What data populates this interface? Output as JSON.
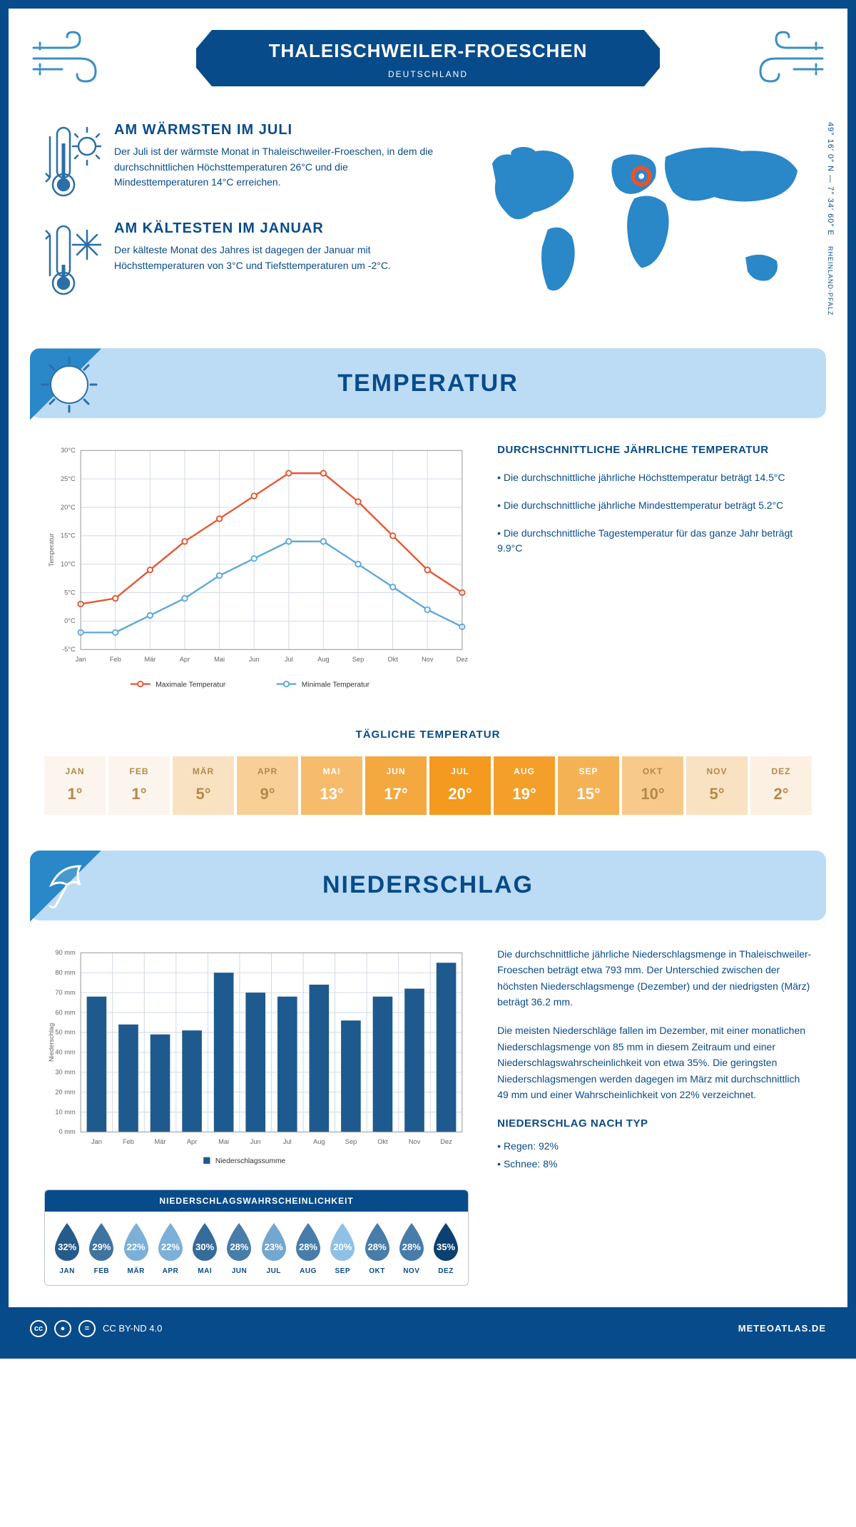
{
  "header": {
    "title": "THALEISCHWEILER-FROESCHEN",
    "country": "DEUTSCHLAND"
  },
  "intro": {
    "warm": {
      "heading": "AM WÄRMSTEN IM JULI",
      "text": "Der Juli ist der wärmste Monat in Thaleischweiler-Froeschen, in dem die durchschnittlichen Höchsttemperaturen 26°C und die Mindesttemperaturen 14°C erreichen."
    },
    "cold": {
      "heading": "AM KÄLTESTEN IM JANUAR",
      "text": "Der kälteste Monat des Jahres ist dagegen der Januar mit Höchsttemperaturen von 3°C und Tiefsttemperaturen um -2°C."
    },
    "coords": "49° 16′ 0″ N — 7° 34′ 60″ E",
    "region": "RHEINLAND-PFALZ"
  },
  "colors": {
    "primary": "#084b8a",
    "header_band": "#bcdcf5",
    "header_corner": "#2a87c8",
    "max_line": "#e8532e",
    "min_line": "#5aa8db",
    "bar_fill": "#1e5a8e",
    "grid": "#cfd8e3",
    "marker_red": "#e8532e"
  },
  "temperature": {
    "section_title": "TEMPERATUR",
    "months": [
      "Jan",
      "Feb",
      "Mär",
      "Apr",
      "Mai",
      "Jun",
      "Jul",
      "Aug",
      "Sep",
      "Okt",
      "Nov",
      "Dez"
    ],
    "max": [
      3,
      4,
      9,
      14,
      18,
      22,
      26,
      26,
      21,
      15,
      9,
      5
    ],
    "min": [
      -2,
      -2,
      1,
      4,
      8,
      11,
      14,
      14,
      10,
      6,
      2,
      -1
    ],
    "y_min": -5,
    "y_max": 30,
    "y_step": 5,
    "y_label": "Temperatur",
    "legend": {
      "max": "Maximale Temperatur",
      "min": "Minimale Temperatur"
    },
    "side": {
      "heading": "DURCHSCHNITTLICHE JÄHRLICHE TEMPERATUR",
      "b1": "• Die durchschnittliche jährliche Höchsttemperatur beträgt 14.5°C",
      "b2": "• Die durchschnittliche jährliche Mindesttemperatur beträgt 5.2°C",
      "b3": "• Die durchschnittliche Tagestemperatur für das ganze Jahr beträgt 9.9°C"
    }
  },
  "daily_temp": {
    "heading": "TÄGLICHE TEMPERATUR",
    "months": [
      "JAN",
      "FEB",
      "MÄR",
      "APR",
      "MAI",
      "JUN",
      "JUL",
      "AUG",
      "SEP",
      "OKT",
      "NOV",
      "DEZ"
    ],
    "values": [
      "1°",
      "1°",
      "5°",
      "9°",
      "13°",
      "17°",
      "20°",
      "19°",
      "15°",
      "10°",
      "5°",
      "2°"
    ],
    "raw": [
      1,
      1,
      5,
      9,
      13,
      17,
      20,
      19,
      15,
      10,
      5,
      2
    ],
    "palette_lo": "#fbf5ed",
    "palette_hi": "#f39a1f"
  },
  "precip": {
    "section_title": "NIEDERSCHLAG",
    "months": [
      "Jan",
      "Feb",
      "Mär",
      "Apr",
      "Mai",
      "Jun",
      "Jul",
      "Aug",
      "Sep",
      "Okt",
      "Nov",
      "Dez"
    ],
    "values": [
      68,
      54,
      49,
      51,
      80,
      70,
      68,
      74,
      56,
      68,
      72,
      85
    ],
    "y_min": 0,
    "y_max": 90,
    "y_step": 10,
    "y_label": "Niederschlag",
    "legend": "Niederschlagssumme",
    "text1": "Die durchschnittliche jährliche Niederschlagsmenge in Thaleischweiler-Froeschen beträgt etwa 793 mm. Der Unterschied zwischen der höchsten Niederschlagsmenge (Dezember) und der niedrigsten (März) beträgt 36.2 mm.",
    "text2": "Die meisten Niederschläge fallen im Dezember, mit einer monatlichen Niederschlagsmenge von 85 mm in diesem Zeitraum und einer Niederschlagswahrscheinlichkeit von etwa 35%. Die geringsten Niederschlagsmengen werden dagegen im März mit durchschnittlich 49 mm und einer Wahrscheinlichkeit von 22% verzeichnet.",
    "by_type_heading": "NIEDERSCHLAG NACH TYP",
    "by_type_1": "• Regen: 92%",
    "by_type_2": "• Schnee: 8%",
    "prob_title": "NIEDERSCHLAGSWAHRSCHEINLICHKEIT",
    "prob_months": [
      "JAN",
      "FEB",
      "MÄR",
      "APR",
      "MAI",
      "JUN",
      "JUL",
      "AUG",
      "SEP",
      "OKT",
      "NOV",
      "DEZ"
    ],
    "prob_values": [
      32,
      29,
      22,
      22,
      30,
      28,
      23,
      28,
      20,
      28,
      28,
      35
    ],
    "drop_lo": "#8fc1e8",
    "drop_hi": "#0a4172"
  },
  "footer": {
    "license": "CC BY-ND 4.0",
    "brand": "METEOATLAS.DE"
  }
}
